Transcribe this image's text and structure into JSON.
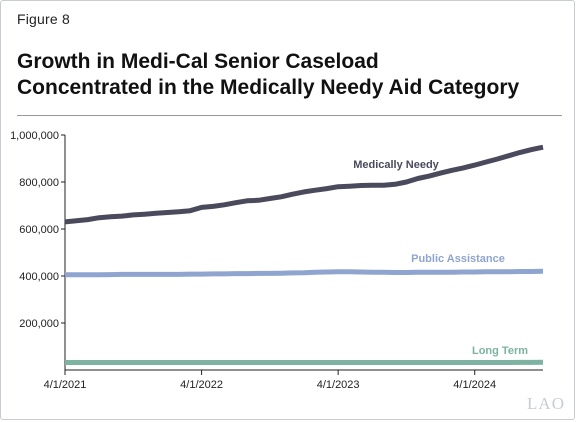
{
  "figure_label": "Figure 8",
  "title_line1": "Growth in Medi-Cal Senior Caseload",
  "title_line2": "Concentrated in the Medically Needy Aid Category",
  "logo": "LAO",
  "chart_data": {
    "type": "line",
    "x_start": "4/1/2021",
    "x_end": "10/1/2024",
    "x_ticks": [
      "4/1/2021",
      "4/1/2022",
      "4/1/2023",
      "4/1/2024"
    ],
    "y_ticks": [
      "1,000,000",
      "800,000",
      "600,000",
      "400,000",
      "200,000"
    ],
    "y_tick_values": [
      1000000,
      800000,
      600000,
      400000,
      200000
    ],
    "ylim": [
      0,
      1000000
    ],
    "x": [
      "2021-04",
      "2021-05",
      "2021-06",
      "2021-07",
      "2021-08",
      "2021-09",
      "2021-10",
      "2021-11",
      "2021-12",
      "2022-01",
      "2022-02",
      "2022-03",
      "2022-04",
      "2022-05",
      "2022-06",
      "2022-07",
      "2022-08",
      "2022-09",
      "2022-10",
      "2022-11",
      "2022-12",
      "2023-01",
      "2023-02",
      "2023-03",
      "2023-04",
      "2023-05",
      "2023-06",
      "2023-07",
      "2023-08",
      "2023-09",
      "2023-10",
      "2023-11",
      "2023-12",
      "2024-01",
      "2024-02",
      "2024-03",
      "2024-04",
      "2024-05",
      "2024-06",
      "2024-07",
      "2024-08",
      "2024-09",
      "2024-10"
    ],
    "series": [
      {
        "name": "Medically Needy",
        "color": "#4a4a5c",
        "values": [
          630000,
          635000,
          640000,
          648000,
          652000,
          655000,
          660000,
          663000,
          667000,
          670000,
          673000,
          678000,
          692000,
          696000,
          703000,
          712000,
          720000,
          722000,
          730000,
          737000,
          748000,
          758000,
          765000,
          772000,
          780000,
          782000,
          785000,
          786000,
          786000,
          790000,
          800000,
          815000,
          825000,
          838000,
          850000,
          860000,
          872000,
          885000,
          898000,
          912000,
          926000,
          938000,
          948000
        ]
      },
      {
        "name": "Public Assistance",
        "color": "#8fa5cf",
        "values": [
          405000,
          405000,
          405000,
          405000,
          406000,
          407000,
          407000,
          407000,
          407000,
          407000,
          407000,
          408000,
          408000,
          409000,
          409000,
          410000,
          410000,
          411000,
          411000,
          412000,
          413000,
          414000,
          416000,
          417000,
          418000,
          418000,
          417000,
          416000,
          416000,
          415000,
          415000,
          416000,
          416000,
          416000,
          416000,
          417000,
          417000,
          418000,
          418000,
          418000,
          419000,
          419000,
          420000
        ]
      },
      {
        "name": "Long Term",
        "color": "#7db3a0",
        "values": [
          32000,
          32000,
          32000,
          32000,
          32000,
          32000,
          32000,
          32000,
          32000,
          32000,
          32000,
          32000,
          32000,
          32000,
          32000,
          32000,
          32000,
          32000,
          32000,
          32000,
          32000,
          32000,
          32000,
          32000,
          32000,
          32000,
          32000,
          32000,
          32000,
          32000,
          32000,
          32000,
          32000,
          32000,
          32000,
          32000,
          32000,
          32000,
          32000,
          32000,
          32500,
          32500,
          33000
        ]
      }
    ],
    "grid": false
  }
}
